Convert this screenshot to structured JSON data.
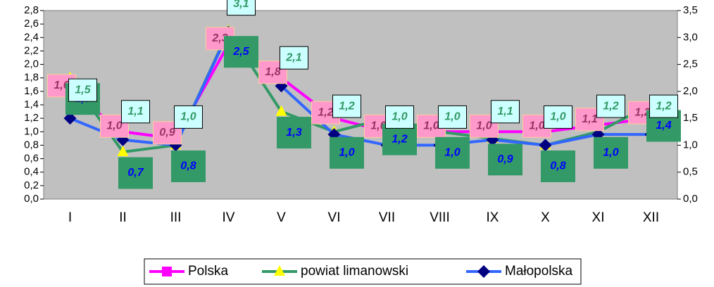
{
  "chart_data": {
    "type": "line",
    "categories": [
      "I",
      "II",
      "III",
      "IV",
      "V",
      "VI",
      "VII",
      "VIII",
      "IX",
      "X",
      "XI",
      "XII"
    ],
    "series": [
      {
        "name": "Polska",
        "color": "#ff00ff",
        "marker_color": "#ff00ff",
        "values": [
          1.6,
          1.0,
          0.9,
          2.3,
          1.8,
          1.2,
          1.0,
          1.0,
          1.0,
          1.0,
          1.1,
          1.2
        ],
        "value_labels": [
          "1,6",
          "1,0",
          "0,9",
          "2,3",
          "1,8",
          "1,2",
          "1,0",
          "1,0",
          "1,0",
          "1,0",
          "1,1",
          "1,2"
        ]
      },
      {
        "name": "powiat limanowski",
        "color": "#339966",
        "marker_color": "#ffff00",
        "values": [
          1.8,
          0.7,
          0.8,
          2.5,
          1.3,
          1.0,
          1.2,
          1.0,
          0.9,
          0.8,
          1.0,
          1.4
        ],
        "value_labels": [
          "1,8",
          "0,7",
          "0,8",
          "2,5",
          "1,3",
          "1,0",
          "1,2",
          "1,0",
          "0,9",
          "0,8",
          "1,0",
          "1,4"
        ]
      },
      {
        "name": "Małopolska",
        "color": "#3366ff",
        "marker_color": "#000080",
        "axis": "y2",
        "values": [
          1.5,
          1.1,
          1.0,
          3.1,
          2.1,
          1.2,
          1.0,
          1.0,
          1.1,
          1.0,
          1.2,
          1.2
        ],
        "value_labels": [
          "1,5",
          "1,1",
          "1,0",
          "3,1",
          "2,1",
          "1,2",
          "1,0",
          "1,0",
          "1,1",
          "1,0",
          "1,2",
          "1,2"
        ]
      }
    ],
    "ylim": [
      0,
      2.8
    ],
    "yticks": [
      {
        "value": 0,
        "label": "0,0"
      },
      {
        "value": 0.2,
        "label": "0,2"
      },
      {
        "value": 0.4,
        "label": "0,4"
      },
      {
        "value": 0.6,
        "label": "0,6"
      },
      {
        "value": 0.8,
        "label": "0,8"
      },
      {
        "value": 1.0,
        "label": "1,0"
      },
      {
        "value": 1.2,
        "label": "1,2"
      },
      {
        "value": 1.4,
        "label": "1,4"
      },
      {
        "value": 1.6,
        "label": "1,6"
      },
      {
        "value": 1.8,
        "label": "1,8"
      },
      {
        "value": 2.0,
        "label": "2,0"
      },
      {
        "value": 2.2,
        "label": "2,2"
      },
      {
        "value": 2.4,
        "label": "2,4"
      },
      {
        "value": 2.6,
        "label": "2,6"
      },
      {
        "value": 2.8,
        "label": "2,8"
      }
    ],
    "y2lim": [
      0,
      3.5
    ],
    "y2ticks": [
      {
        "value": 0,
        "label": "0,0"
      },
      {
        "value": 0.5,
        "label": "0,5"
      },
      {
        "value": 1.0,
        "label": "1,0"
      },
      {
        "value": 1.5,
        "label": "1,5"
      },
      {
        "value": 2.0,
        "label": "2,0"
      },
      {
        "value": 2.5,
        "label": "2,5"
      },
      {
        "value": 3.0,
        "label": "3,0"
      },
      {
        "value": 3.5,
        "label": "3,5"
      }
    ],
    "legend": "bottom"
  }
}
